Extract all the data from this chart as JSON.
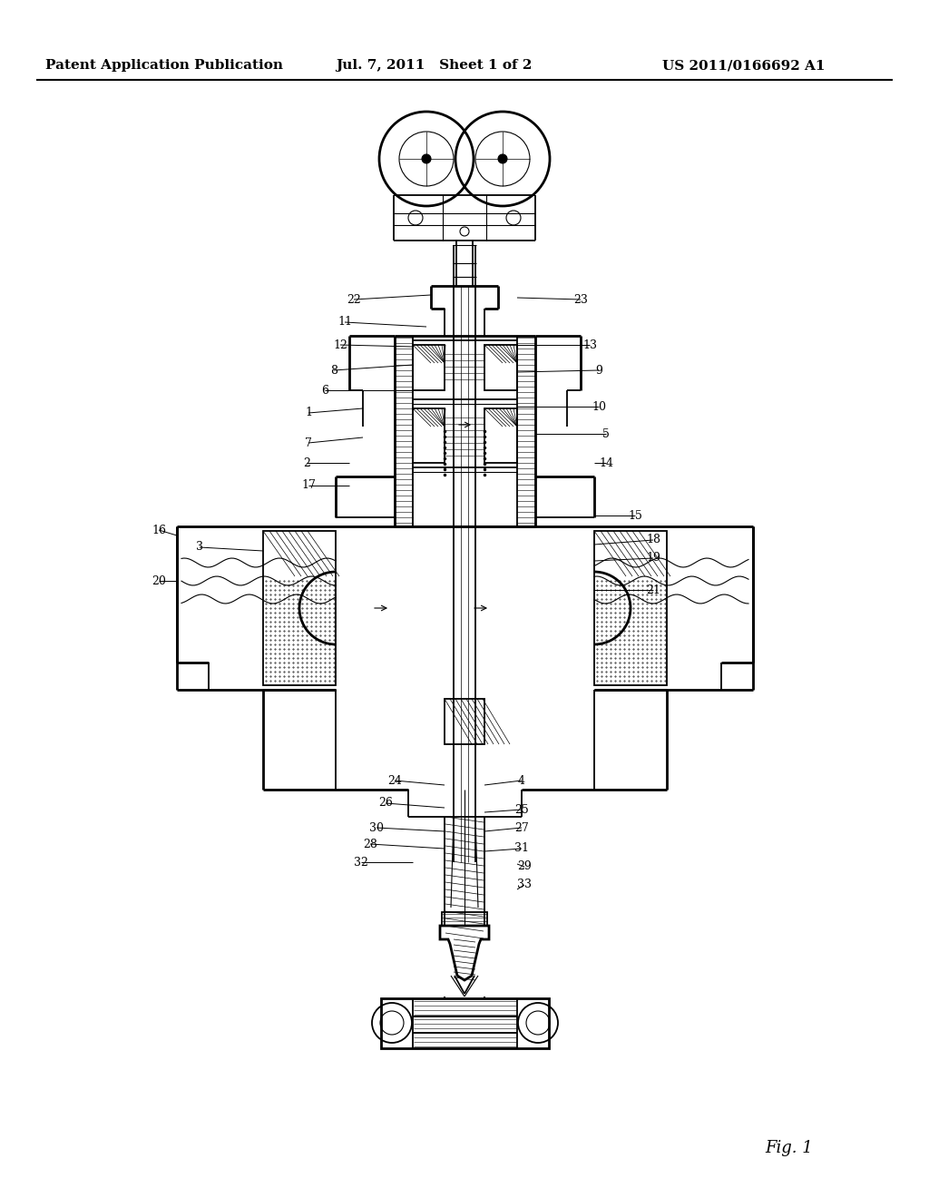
{
  "header_left": "Patent Application Publication",
  "header_mid": "Jul. 7, 2011   Sheet 1 of 2",
  "header_right": "US 2011/0166692 A1",
  "fig_label": "Fig. 1",
  "bg_color": "#ffffff",
  "line_color": "#000000",
  "header_fontsize": 11,
  "fig_label_fontsize": 13
}
